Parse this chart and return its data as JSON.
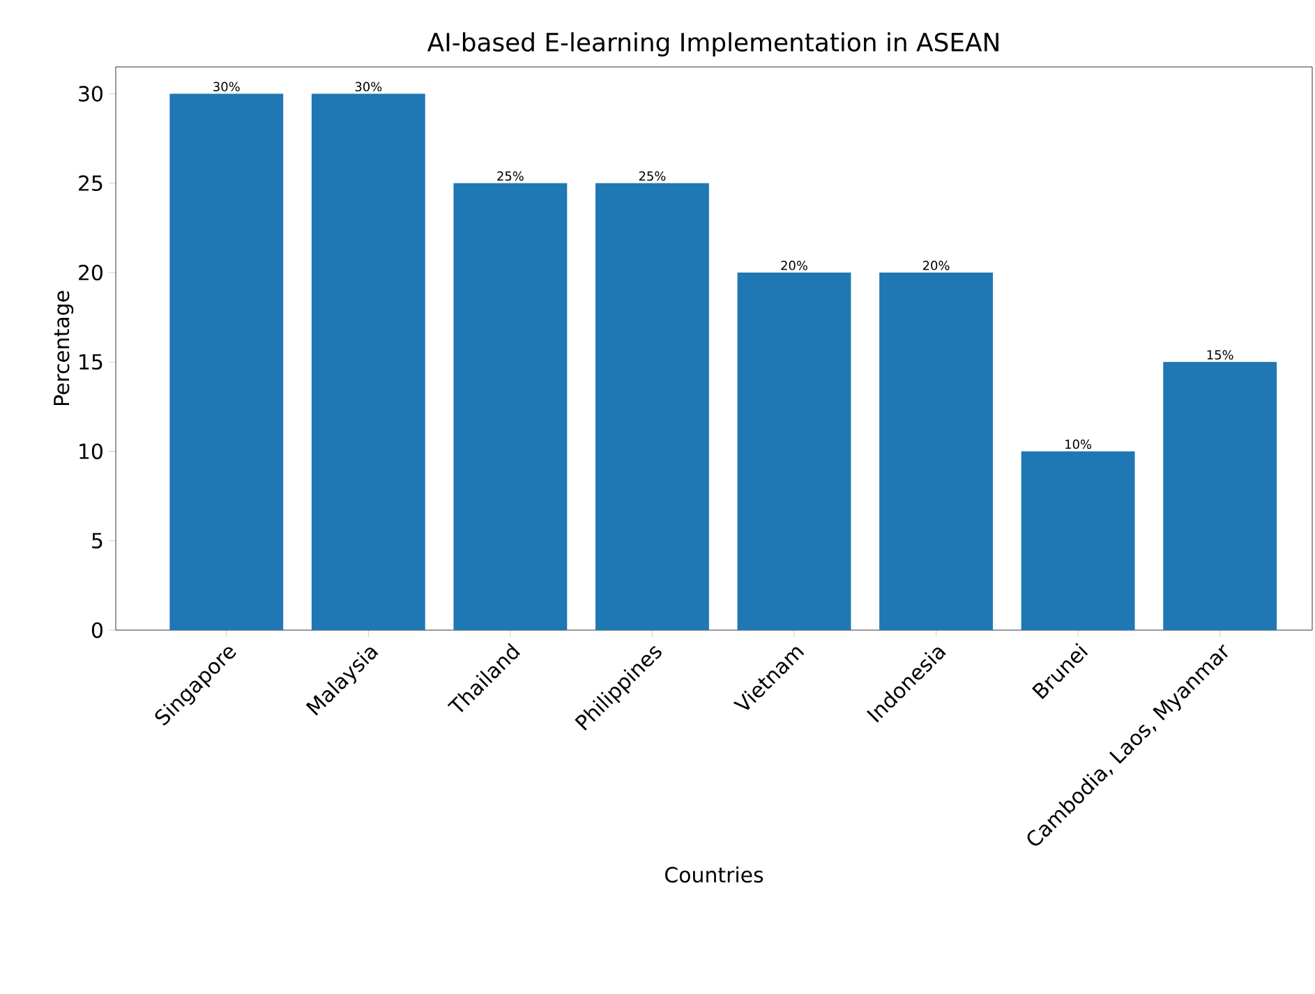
{
  "chart_data": {
    "type": "bar",
    "title": "AI-based E-learning Implementation in ASEAN",
    "xlabel": "Countries",
    "ylabel": "Percentage",
    "categories": [
      "Singapore",
      "Malaysia",
      "Thailand",
      "Philippines",
      "Vietnam",
      "Indonesia",
      "Brunei",
      "Cambodia, Laos, Myanmar"
    ],
    "values": [
      30,
      30,
      25,
      25,
      20,
      20,
      10,
      15
    ],
    "value_labels": [
      "30%",
      "30%",
      "25%",
      "25%",
      "20%",
      "20%",
      "10%",
      "15%"
    ],
    "color": "#1f77b4",
    "ylim": [
      0,
      31.5
    ],
    "yticks": [
      0,
      5,
      10,
      15,
      20,
      25,
      30
    ],
    "grid": false
  }
}
